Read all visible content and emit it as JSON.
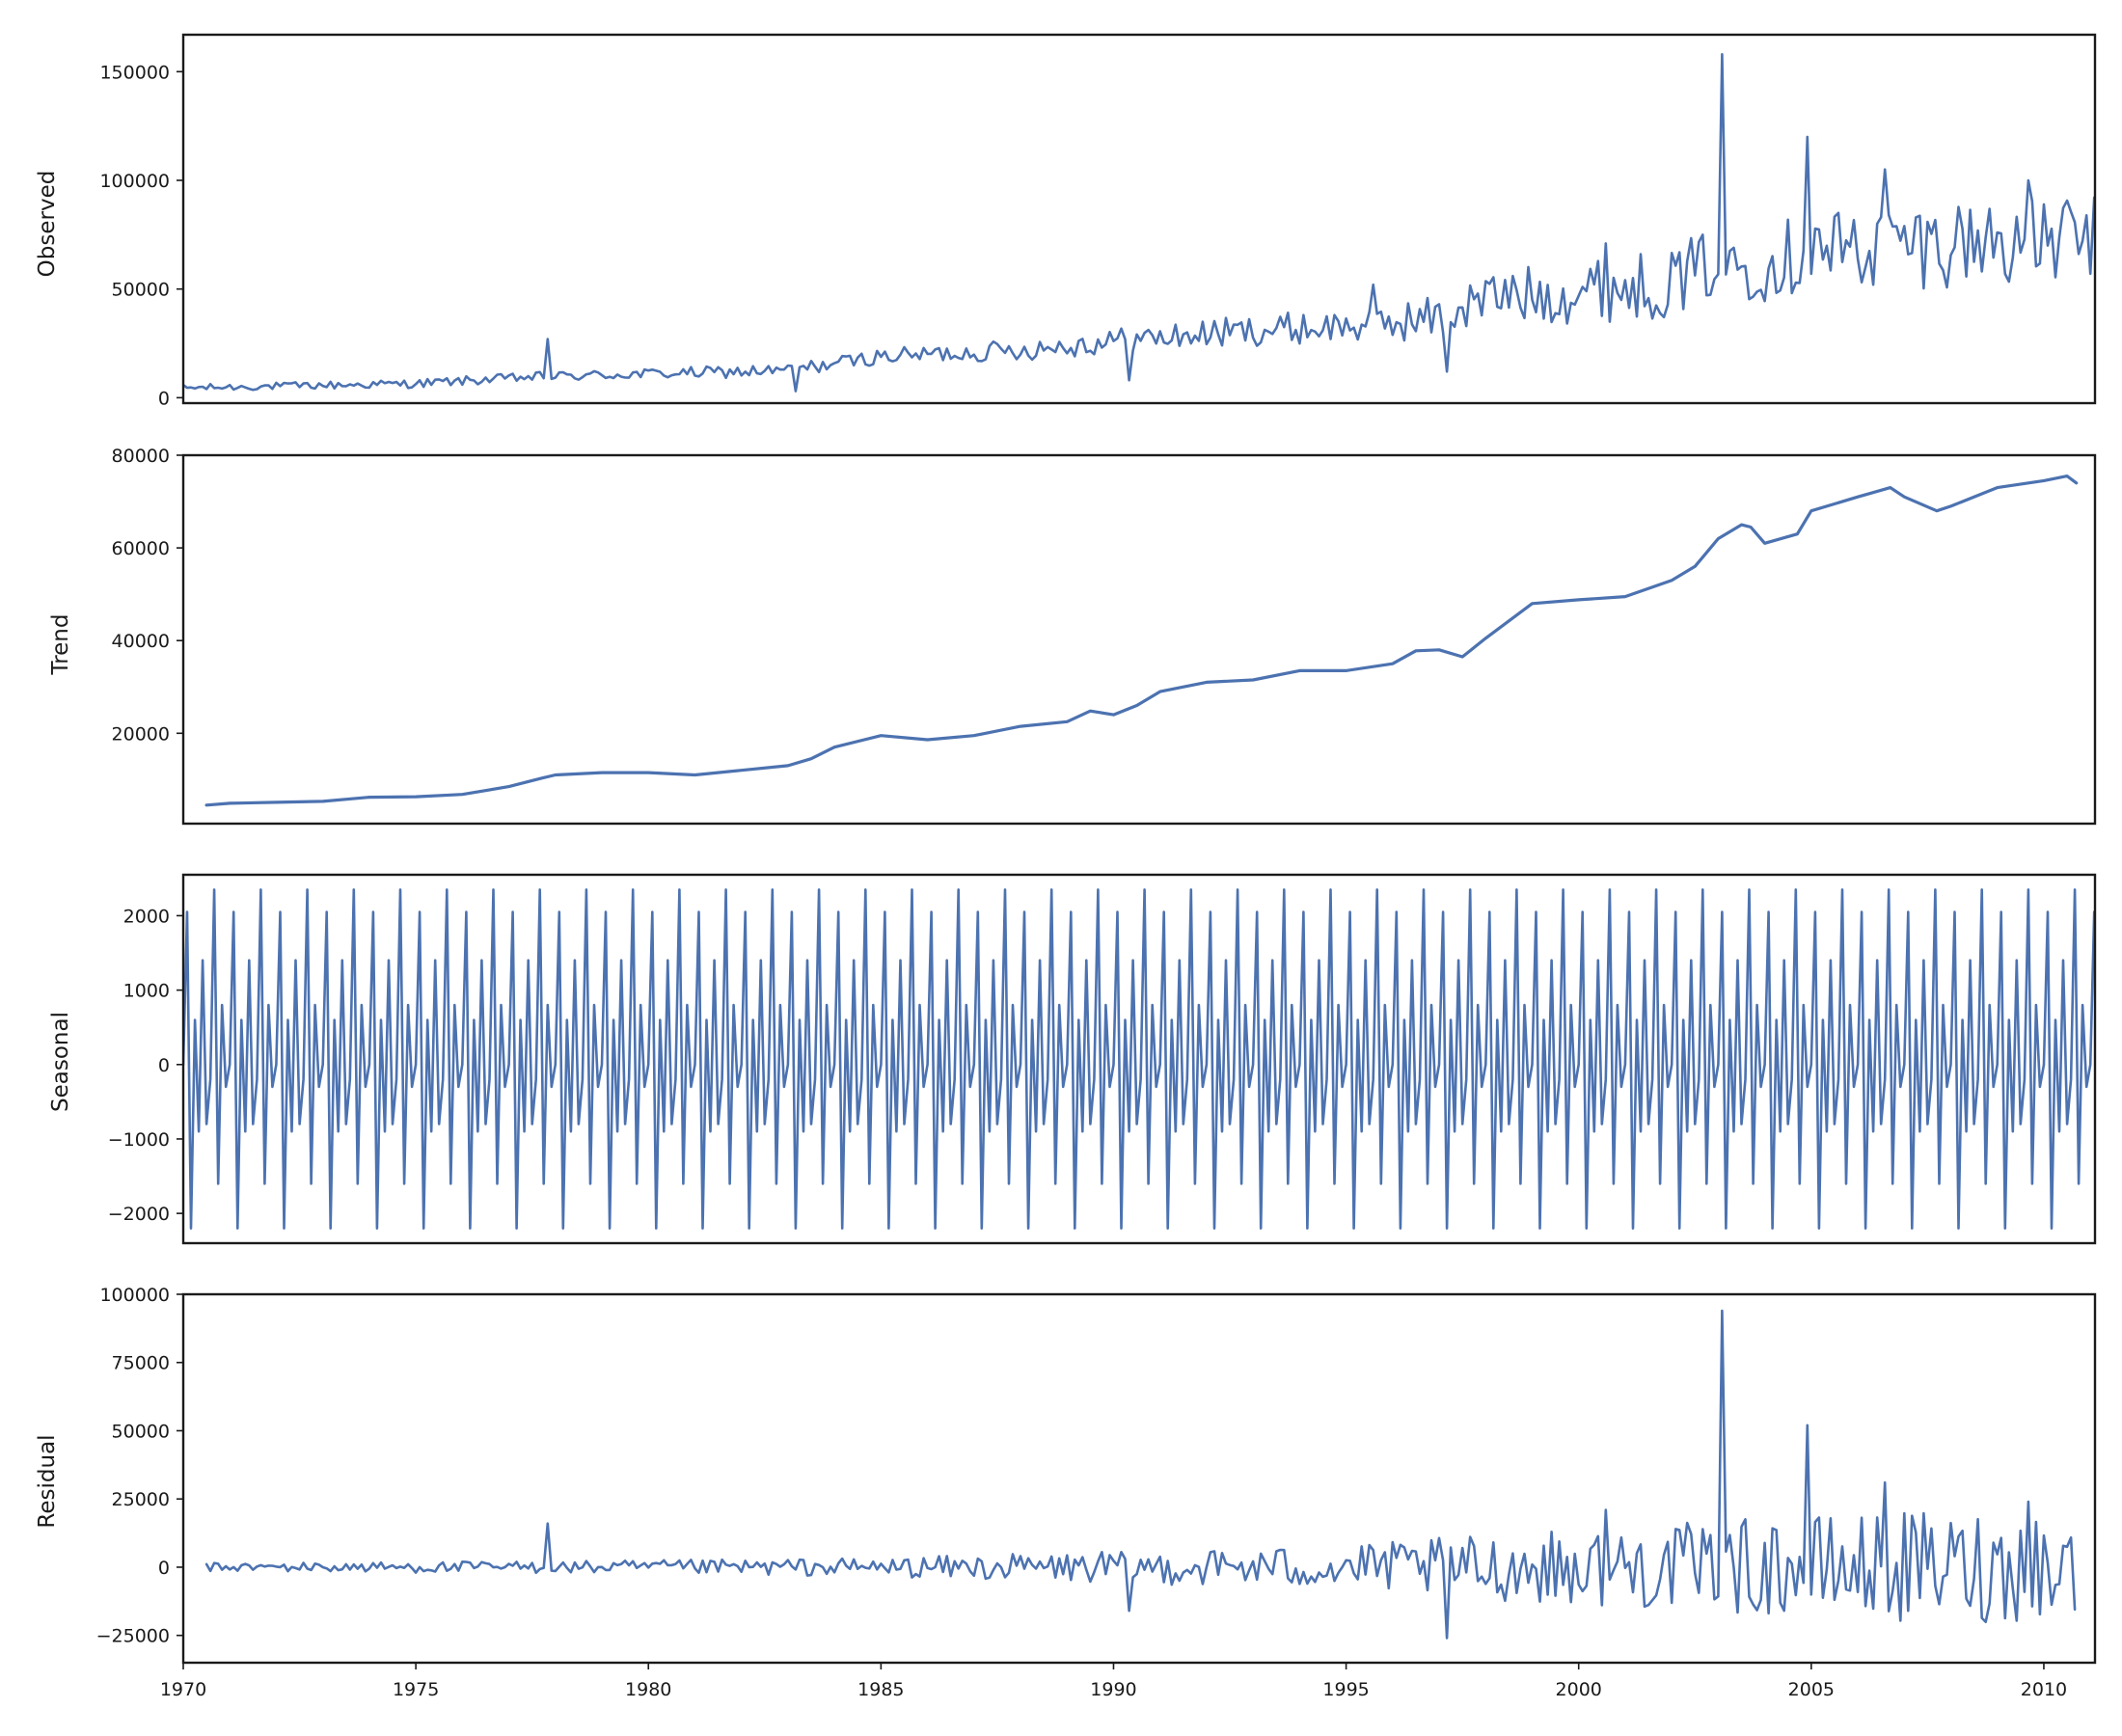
{
  "chart_data": {
    "type": "line",
    "figure_kind": "seasonal-decomposition",
    "title": "",
    "xlim": [
      1970.0,
      2011.1
    ],
    "x_ticks": [
      1970,
      1975,
      1980,
      1985,
      1990,
      1995,
      2000,
      2005,
      2010
    ],
    "x_tick_labels": [
      "1970",
      "1975",
      "1980",
      "1985",
      "1990",
      "1995",
      "2000",
      "2005",
      "2010"
    ],
    "line_color": "#4c72b0",
    "grid": false,
    "panels": [
      {
        "id": "observed",
        "ylabel": "Observed",
        "ylim": [
          -2500,
          167000
        ],
        "y_ticks": [
          0,
          50000,
          100000,
          150000
        ],
        "y_tick_labels": [
          "0",
          "50000",
          "100000",
          "150000"
        ],
        "series": [
          {
            "kind": "trend_plus_noise",
            "trend_x": [
              1970,
              1975,
              1977.5,
              1980,
              1983,
              1985,
              1988,
              1990,
              1993,
              1995,
              1997,
              1998,
              2000,
              2002,
              2003,
              2004,
              2005,
              2007,
              2009,
              2011.1
            ],
            "trend_y": [
              4500,
              6500,
              9500,
              11000,
              12500,
              19000,
              22000,
              26000,
              31000,
              33000,
              37000,
              46000,
              49000,
              53000,
              63000,
              62000,
              68000,
              70000,
              73000,
              72000
            ],
            "amp_x": [
              1970,
              1975,
              1980,
              1985,
              1990,
              1995,
              1998,
              2000,
              2003,
              2006,
              2011.1
            ],
            "amp_y": [
              1500,
              2000,
              2500,
              3500,
              6000,
              8000,
              12000,
              15000,
              17000,
              20000,
              22000
            ],
            "spikes": [
              [
                1977.85,
                27000
              ],
              [
                1983.2,
                3000
              ],
              [
                1990.3,
                8000
              ],
              [
                1995.6,
                52000
              ],
              [
                1997.2,
                12000
              ],
              [
                2000.6,
                71000
              ],
              [
                2001.3,
                66000
              ],
              [
                2003.05,
                158000
              ],
              [
                2004.95,
                120000
              ],
              [
                2005.0,
                57000
              ],
              [
                2006.55,
                105000
              ],
              [
                2009.65,
                100000
              ]
            ]
          }
        ]
      },
      {
        "id": "trend",
        "ylabel": "Trend",
        "ylim": [
          500,
          80000
        ],
        "y_ticks": [
          20000,
          40000,
          60000,
          80000
        ],
        "y_tick_labels": [
          "20000",
          "40000",
          "60000",
          "80000"
        ],
        "series": [
          {
            "kind": "line",
            "x": [
              1970.5,
              1971,
              1972,
              1973,
              1974,
              1975,
              1976,
              1977,
              1977.7,
              1978,
              1979,
              1980,
              1981,
              1982,
              1983,
              1983.5,
              1984,
              1985,
              1986,
              1987,
              1988,
              1989,
              1989.5,
              1990,
              1990.5,
              1991,
              1992,
              1993,
              1994,
              1995,
              1996,
              1996.5,
              1997,
              1997.5,
              1998,
              1999,
              2000,
              2001,
              2002,
              2002.5,
              2003,
              2003.5,
              2003.7,
              2004,
              2004.7,
              2005,
              2006,
              2006.7,
              2007,
              2007.7,
              2008,
              2009,
              2010,
              2010.5,
              2010.7
            ],
            "y": [
              4500,
              4900,
              5100,
              5300,
              6200,
              6300,
              6800,
              8500,
              10300,
              11000,
              11500,
              11500,
              11000,
              12000,
              13000,
              14500,
              17000,
              19500,
              18600,
              19500,
              21500,
              22500,
              24800,
              24000,
              26000,
              29000,
              31000,
              31500,
              33500,
              33500,
              35000,
              37800,
              38000,
              36500,
              40500,
              48000,
              48800,
              49500,
              53000,
              56000,
              62000,
              65000,
              64500,
              61000,
              63000,
              68000,
              71000,
              73000,
              71000,
              68000,
              69000,
              73000,
              74500,
              75500,
              74000
            ]
          }
        ]
      },
      {
        "id": "seasonal",
        "ylabel": "Seasonal",
        "ylim": [
          -2400,
          2550
        ],
        "y_ticks": [
          -2000,
          -1000,
          0,
          1000,
          2000
        ],
        "y_tick_labels": [
          "−2000",
          "−1000",
          "0",
          "1000",
          "2000"
        ],
        "series": [
          {
            "kind": "periodic",
            "period_years": 1.0,
            "start": 1970.0,
            "pattern": [
              0,
              2050,
              -2200,
              600,
              -900,
              1400,
              -800,
              -200,
              2350,
              -1600,
              800,
              -300
            ]
          }
        ]
      },
      {
        "id": "residual",
        "ylabel": "Residual",
        "ylim": [
          -35000,
          100000
        ],
        "y_ticks": [
          -25000,
          0,
          25000,
          50000,
          75000,
          100000
        ],
        "y_tick_labels": [
          "−25000",
          "0",
          "25000",
          "50000",
          "75000",
          "100000"
        ],
        "series": [
          {
            "kind": "noise",
            "x_range": [
              1970.5,
              2010.7
            ],
            "amp_x": [
              1970,
              1975,
              1980,
              1985,
              1990,
              1995,
              1998,
              2000,
              2003,
              2006,
              2011
            ],
            "amp_y": [
              1500,
              2000,
              2500,
              3500,
              6000,
              8000,
              12000,
              14000,
              17000,
              20000,
              22000
            ],
            "spikes": [
              [
                1977.85,
                16000
              ],
              [
                1990.3,
                -16000
              ],
              [
                1997.2,
                -26000
              ],
              [
                2000.6,
                21000
              ],
              [
                2003.05,
                94000
              ],
              [
                2004.95,
                52000
              ],
              [
                2005.0,
                -10000
              ],
              [
                2006.55,
                31000
              ],
              [
                2009.65,
                24000
              ]
            ]
          }
        ]
      }
    ]
  }
}
